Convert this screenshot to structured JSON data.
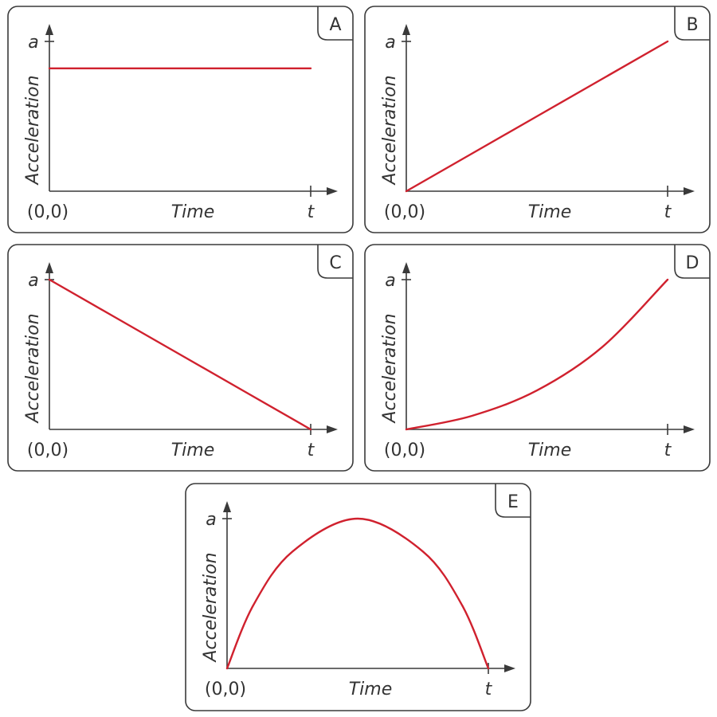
{
  "chart_data": [
    {
      "id": "A",
      "type": "line",
      "panel_label": "A",
      "shape": "constant",
      "x": [
        0,
        0.25,
        0.5,
        0.75,
        1
      ],
      "y": [
        0.82,
        0.82,
        0.82,
        0.82,
        0.82
      ],
      "xlabel": "Time",
      "ylabel": "Acceleration",
      "origin_label": "(0,0)",
      "x_end_label": "t",
      "y_end_label": "a",
      "xlim": [
        0,
        1
      ],
      "ylim": [
        0,
        1
      ]
    },
    {
      "id": "B",
      "type": "line",
      "panel_label": "B",
      "shape": "linear-increasing",
      "x": [
        0,
        0.25,
        0.5,
        0.75,
        1
      ],
      "y": [
        0,
        0.25,
        0.5,
        0.75,
        1
      ],
      "xlabel": "Time",
      "ylabel": "Acceleration",
      "origin_label": "(0,0)",
      "x_end_label": "t",
      "y_end_label": "a",
      "xlim": [
        0,
        1
      ],
      "ylim": [
        0,
        1
      ]
    },
    {
      "id": "C",
      "type": "line",
      "panel_label": "C",
      "shape": "linear-decreasing",
      "x": [
        0,
        0.25,
        0.5,
        0.75,
        1
      ],
      "y": [
        1,
        0.75,
        0.5,
        0.25,
        0
      ],
      "xlabel": "Time",
      "ylabel": "Acceleration",
      "origin_label": "(0,0)",
      "x_end_label": "t",
      "y_end_label": "a",
      "xlim": [
        0,
        1
      ],
      "ylim": [
        0,
        1
      ]
    },
    {
      "id": "D",
      "type": "line",
      "panel_label": "D",
      "shape": "increasing-curve",
      "x": [
        0,
        0.25,
        0.5,
        0.75,
        1
      ],
      "y": [
        0,
        0.09,
        0.26,
        0.55,
        1
      ],
      "xlabel": "Time",
      "ylabel": "Acceleration",
      "origin_label": "(0,0)",
      "x_end_label": "t",
      "y_end_label": "a",
      "xlim": [
        0,
        1
      ],
      "ylim": [
        0,
        1
      ]
    },
    {
      "id": "E",
      "type": "line",
      "panel_label": "E",
      "shape": "rise-then-fall",
      "x": [
        0,
        0.1,
        0.25,
        0.5,
        0.75,
        0.9,
        1
      ],
      "y": [
        0,
        0.42,
        0.78,
        1,
        0.78,
        0.42,
        0
      ],
      "xlabel": "Time",
      "ylabel": "Acceleration",
      "origin_label": "(0,0)",
      "x_end_label": "t",
      "y_end_label": "a",
      "xlim": [
        0,
        1
      ],
      "ylim": [
        0,
        1
      ]
    }
  ],
  "colors": {
    "curve": "#d0212e",
    "ink": "#333333",
    "frame": "#3a3a3a"
  }
}
